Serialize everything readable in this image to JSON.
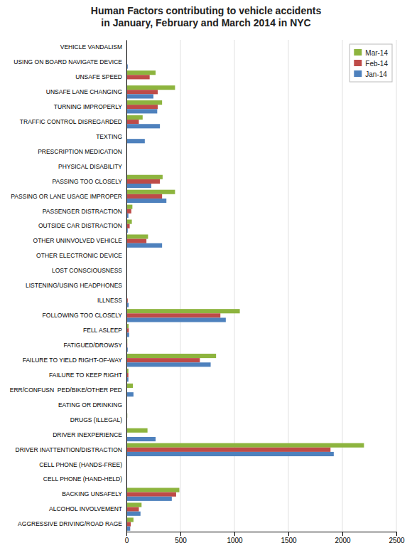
{
  "chart_data": {
    "type": "bar",
    "orientation": "horizontal",
    "title": "Human Factors contributing to vehicle accidents\nin January, February and March 2014 in NYC",
    "categories": [
      "VEHICLE VANDALISM",
      "USING ON BOARD NAVIGATE DEVICE",
      "UNSAFE SPEED",
      "UNSAFE LANE CHANGING",
      "TURNING IMPROPERLY",
      "TRAFFIC CONTROL DISREGARDED",
      "TEXTING",
      "PRESCRIPTION MEDICATION",
      "PHYSICAL DISABILITY",
      "PASSING TOO CLOSELY",
      "PASSING OR LANE USAGE IMPROPER",
      "PASSENGER DISTRACTION",
      "OUTSIDE CAR DISTRACTION",
      "OTHER UNINVOLVED VEHICLE",
      "OTHER ELECTRONIC DEVICE",
      "LOST CONSCIOUSNESS",
      "LISTENING/USING HEADPHONES",
      "ILLNESS",
      "FOLLOWING TOO CLOSELY",
      "FELL ASLEEP",
      "FATIGUED/DROWSY",
      "FAILURE TO YIELD RIGHT-OF-WAY",
      "FAILURE TO KEEP RIGHT",
      "ERR/CONFUSN  PED/BIKE/OTHER PED",
      "EATING OR DRINKING",
      "DRUGS (ILLEGAL)",
      "DRIVER INEXPERIENCE",
      "DRIVER INATTENTION/DISTRACTION",
      "CELL PHONE (HANDS-FREE)",
      "CELL PHONE (HAND-HELD)",
      "BACKING UNSAFELY",
      "ALCOHOL INVOLVEMENT",
      "AGGRESSIVE DRIVING/ROAD RAGE"
    ],
    "series": [
      {
        "name": "Mar-14",
        "color": "#8db43e",
        "values": [
          0,
          2,
          270,
          450,
          330,
          150,
          0,
          0,
          0,
          335,
          450,
          55,
          50,
          200,
          0,
          3,
          0,
          5,
          1050,
          20,
          8,
          830,
          18,
          60,
          0,
          8,
          195,
          2200,
          0,
          0,
          490,
          140,
          65
        ]
      },
      {
        "name": "Feb-14",
        "color": "#be4b48",
        "values": [
          0,
          2,
          215,
          290,
          290,
          115,
          0,
          0,
          0,
          310,
          330,
          45,
          30,
          185,
          0,
          3,
          0,
          12,
          870,
          22,
          8,
          680,
          18,
          5,
          0,
          5,
          5,
          1890,
          0,
          0,
          460,
          115,
          40
        ]
      },
      {
        "name": "Jan-14",
        "color": "#4e81bd",
        "values": [
          0,
          12,
          0,
          250,
          285,
          310,
          170,
          0,
          0,
          230,
          370,
          18,
          12,
          330,
          0,
          3,
          0,
          20,
          920,
          25,
          12,
          780,
          18,
          65,
          0,
          5,
          270,
          1920,
          0,
          0,
          420,
          130,
          35
        ]
      }
    ],
    "xlim": [
      0,
      2500
    ],
    "xticks": [
      0,
      500,
      1000,
      1500,
      2000,
      2500
    ],
    "grid": true,
    "legend": "upper right"
  }
}
